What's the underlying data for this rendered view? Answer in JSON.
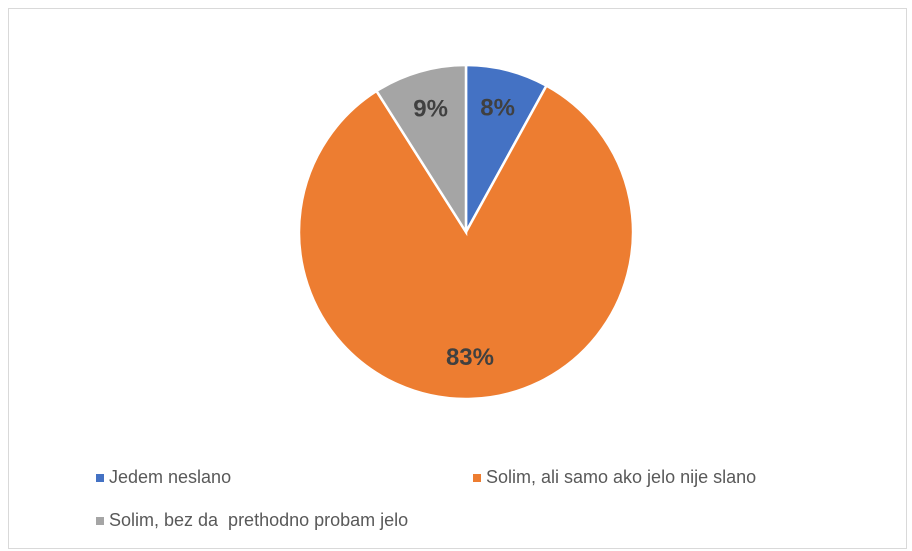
{
  "chart_data": {
    "type": "pie",
    "categories": [
      "Jedem neslano",
      "Solim, ali samo ako jelo nije slano",
      "Solim, bez da  prethodno probam jelo"
    ],
    "values": [
      8,
      83,
      9
    ],
    "value_labels": [
      "8%",
      "83%",
      "9%"
    ],
    "colors": [
      "#4472c4",
      "#ed7d31",
      "#a5a5a5"
    ],
    "legend": "bottom"
  }
}
